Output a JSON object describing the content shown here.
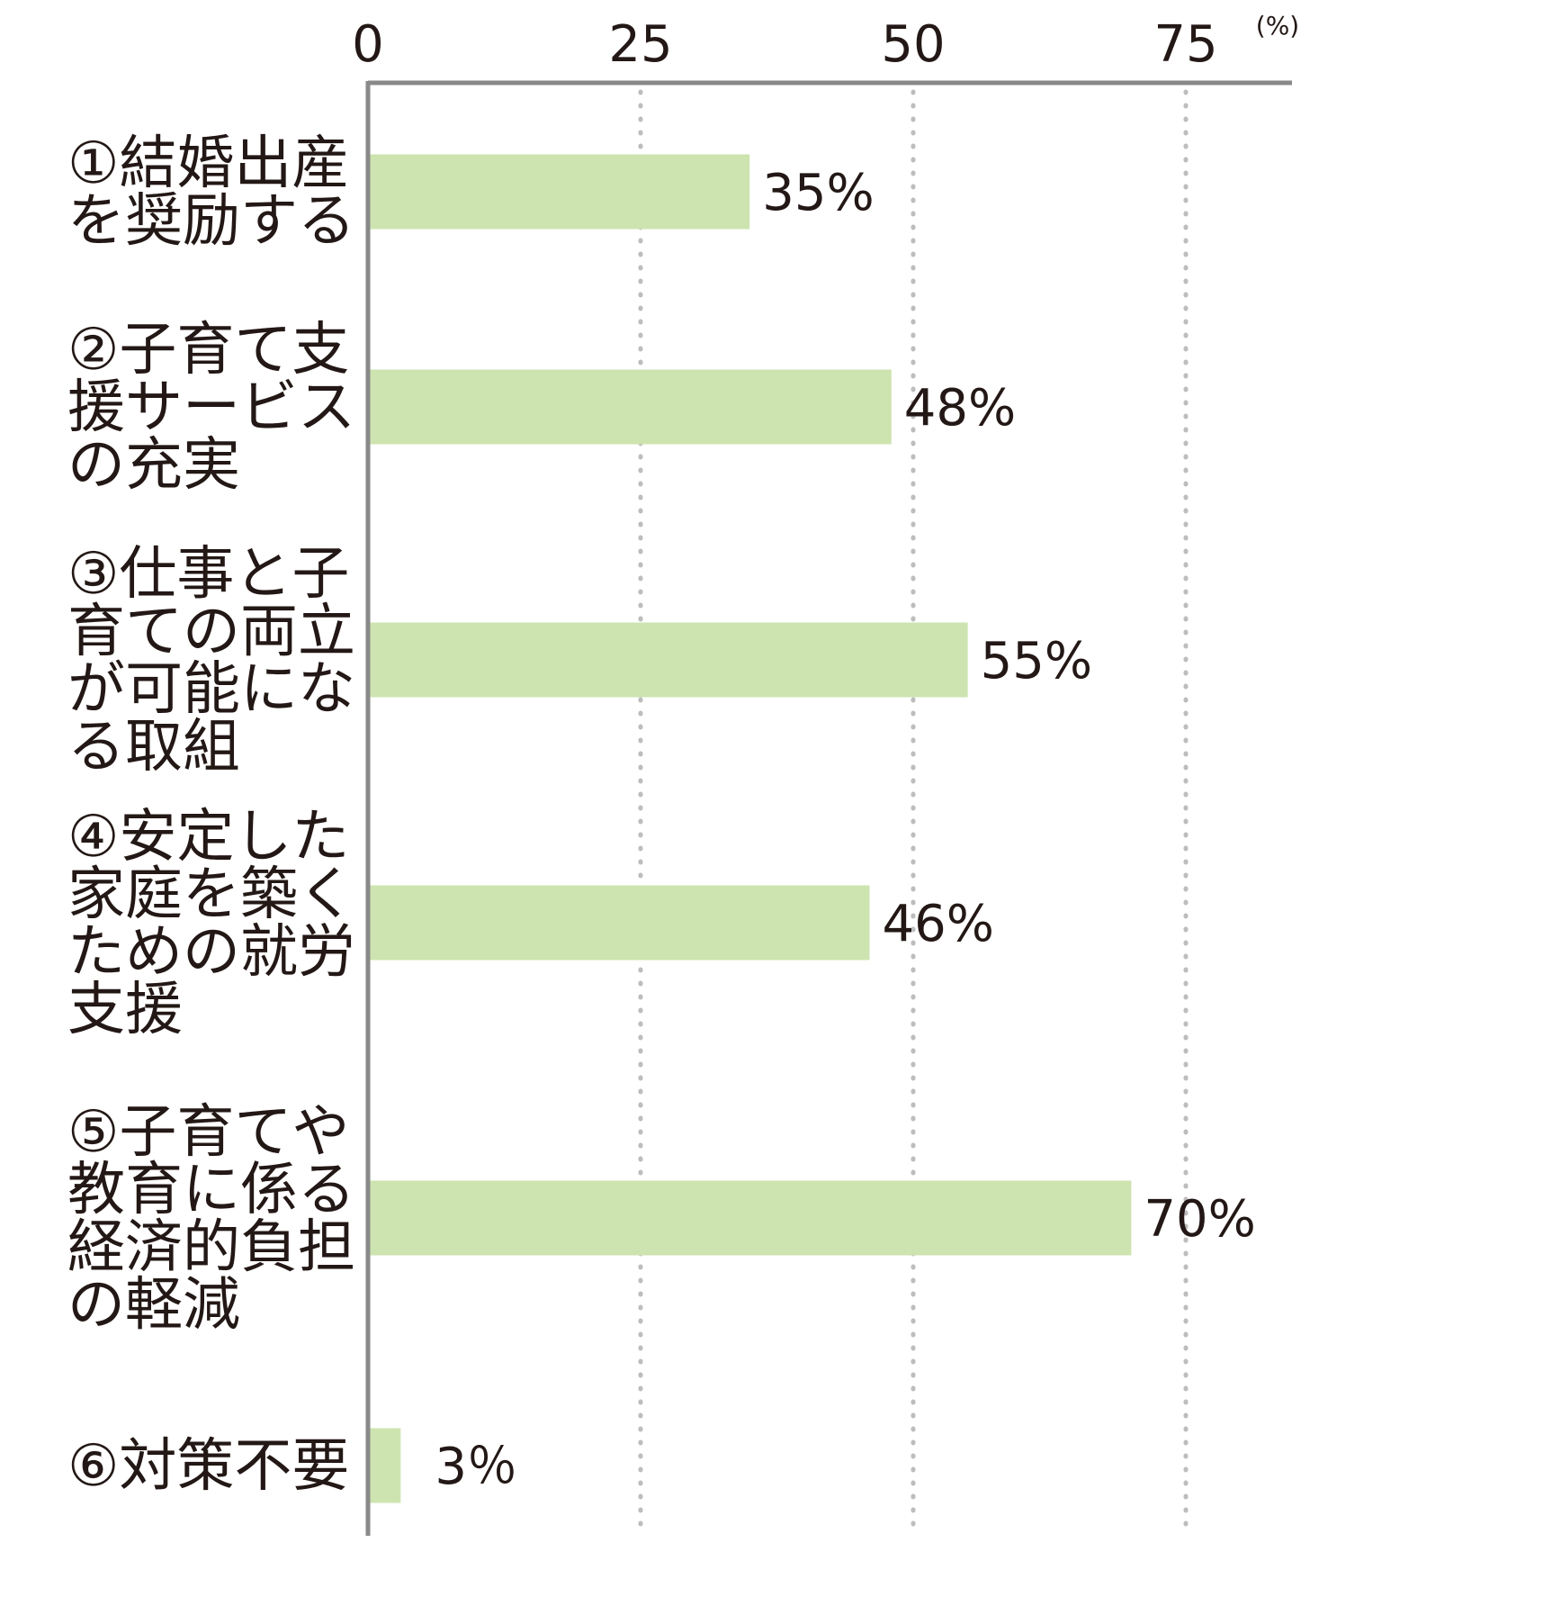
{
  "chart_data": {
    "type": "bar",
    "orientation": "horizontal",
    "x_unit": "(%)",
    "xlim": [
      0,
      75
    ],
    "x_ticks": [
      0,
      25,
      50,
      75
    ],
    "grid": true,
    "categories": [
      [
        "①結婚出産",
        "を奨励する"
      ],
      [
        "②子育て支",
        "援サービス",
        "の充実"
      ],
      [
        "③仕事と子",
        "育ての両立",
        "が可能にな",
        "る取組"
      ],
      [
        "④安定した",
        "家庭を築く",
        "ための就労",
        "支援"
      ],
      [
        "⑤子育てや",
        "教育に係る",
        "経済的負担",
        "の軽減"
      ],
      [
        "⑥対策不要"
      ]
    ],
    "values": [
      35,
      48,
      55,
      46,
      70,
      3
    ],
    "value_labels": [
      "35%",
      "48%",
      "55%",
      "46%",
      "70%",
      "3％"
    ]
  },
  "colors": {
    "bar": "#cde4b0",
    "axis": "#898989",
    "grid": "#bdbdbd",
    "text": "#231815"
  }
}
